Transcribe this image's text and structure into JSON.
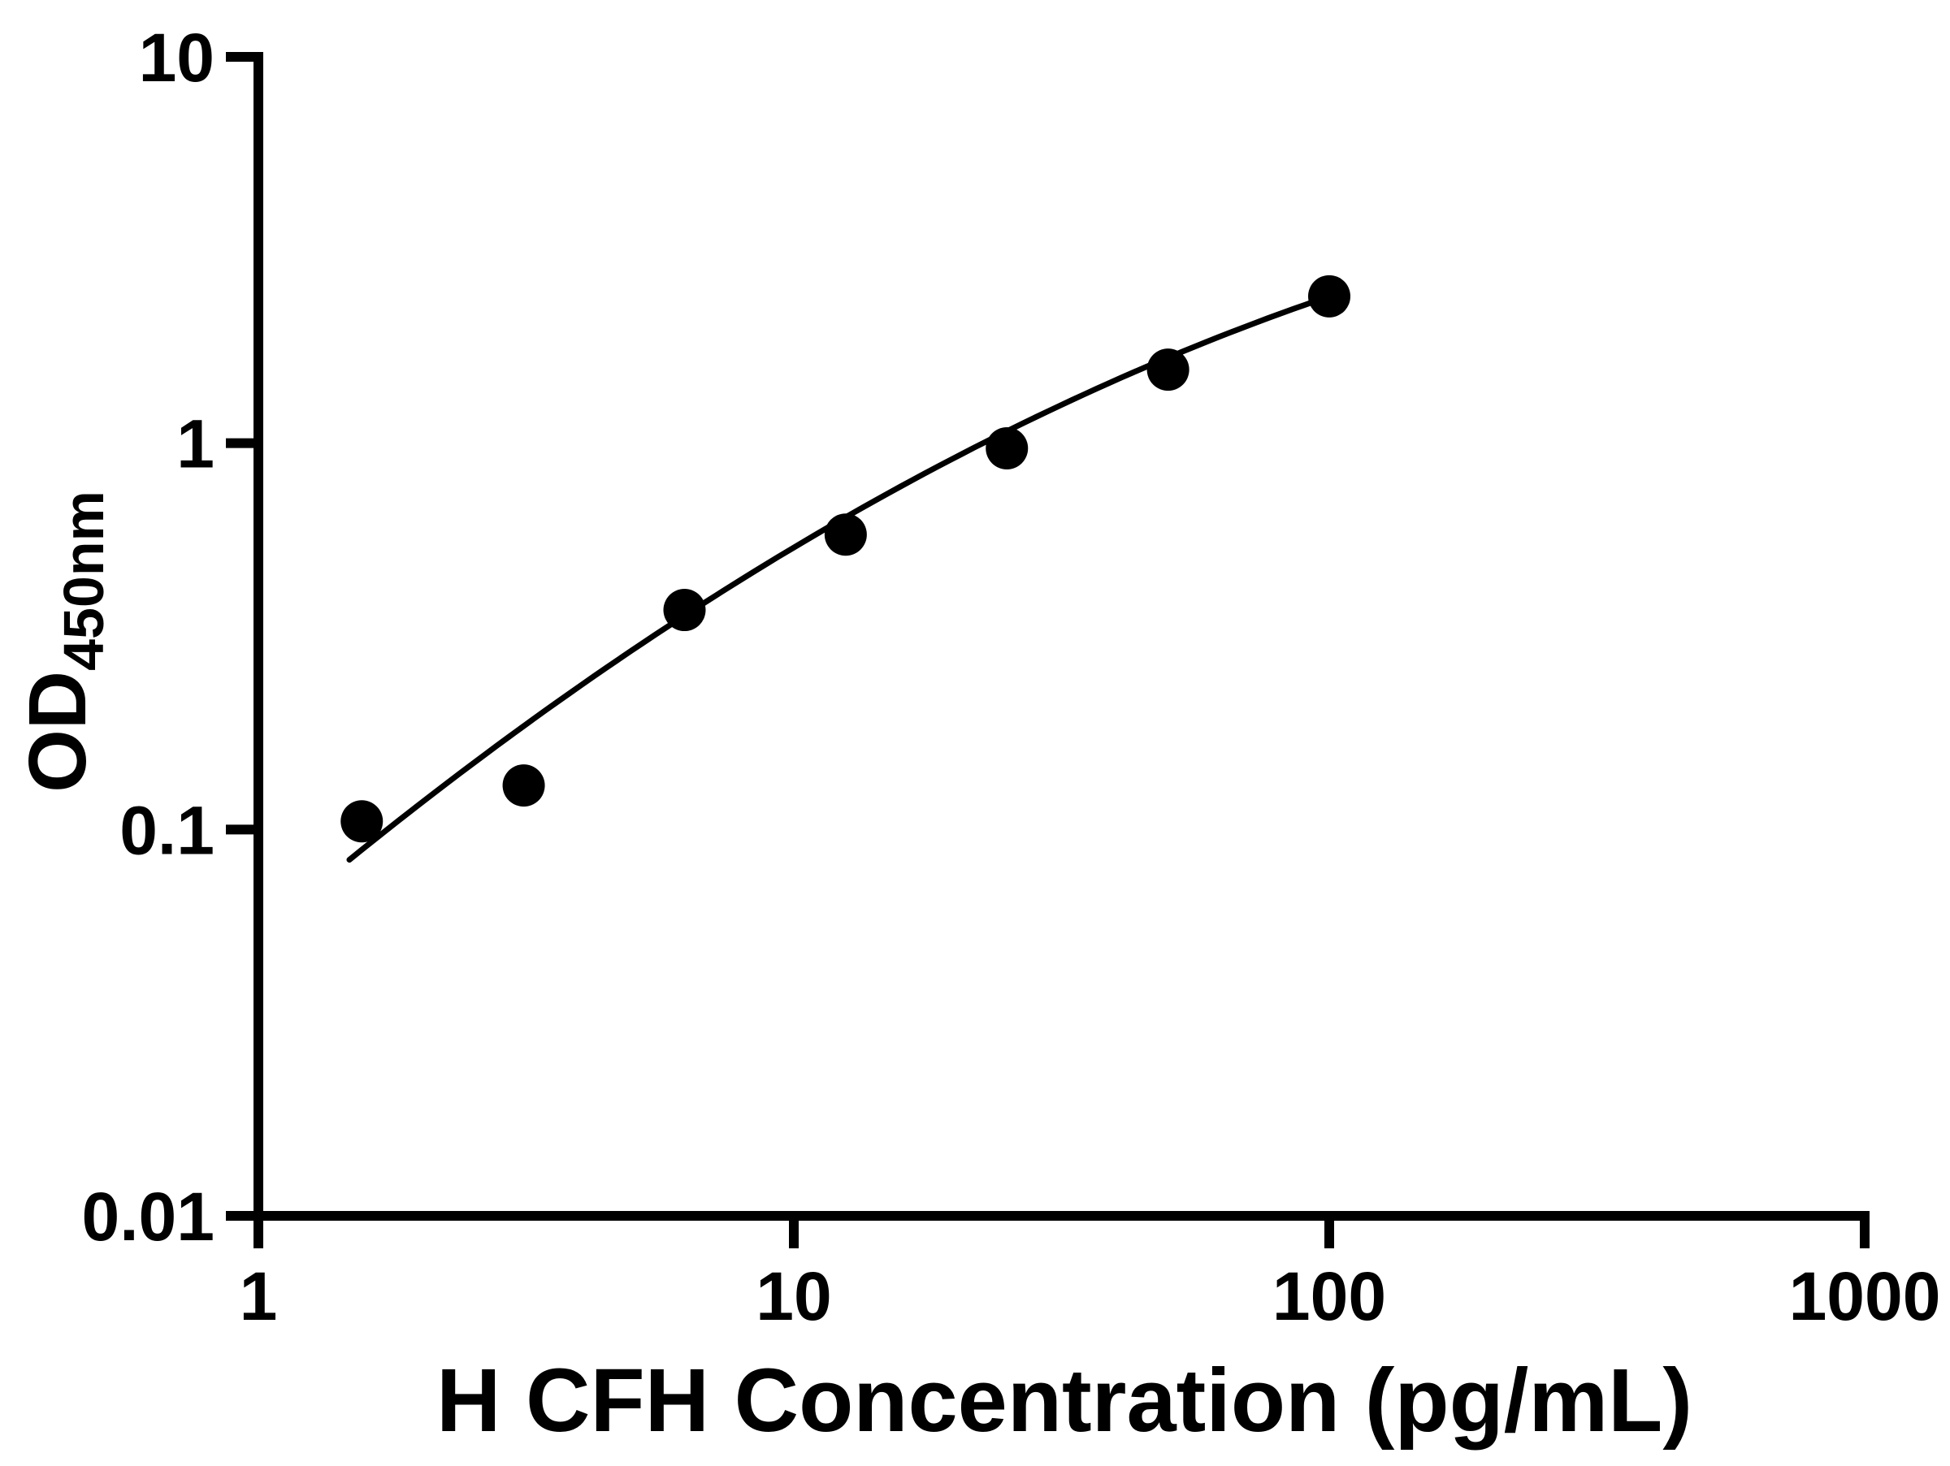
{
  "page": {
    "background": "#ffffff"
  },
  "chart_data": {
    "type": "scatter",
    "title": "",
    "xlabel": "H CFH Concentration (pg/mL)",
    "ylabel": "OD",
    "ylabel_sub": "450nm",
    "xscale": "log",
    "yscale": "log",
    "xlim": [
      1,
      1000
    ],
    "ylim": [
      0.01,
      10
    ],
    "xticks": [
      "1",
      "10",
      "100",
      "1000"
    ],
    "yticks": [
      "0.01",
      "0.1",
      "1",
      "10"
    ],
    "grid": false,
    "legend_position": "none",
    "points": {
      "x": [
        1.56,
        3.13,
        6.25,
        12.5,
        25,
        50,
        100
      ],
      "y": [
        0.105,
        0.13,
        0.37,
        0.58,
        0.97,
        1.55,
        2.4
      ]
    },
    "fit_curve": {
      "description": "smooth fit, quadratic in log10(x)/log10(y) space: v = a + b*u + c*u^2",
      "a": -1.274,
      "b": 1.181,
      "c": -0.177,
      "log10x_min": 0.17,
      "log10x_max": 2.0
    },
    "style": {
      "marker_color": "#000000",
      "marker_radius": 26,
      "line_color": "#000000",
      "line_width": 7,
      "axis_color": "#000000",
      "axis_width": 12,
      "tick_length": 40
    }
  }
}
